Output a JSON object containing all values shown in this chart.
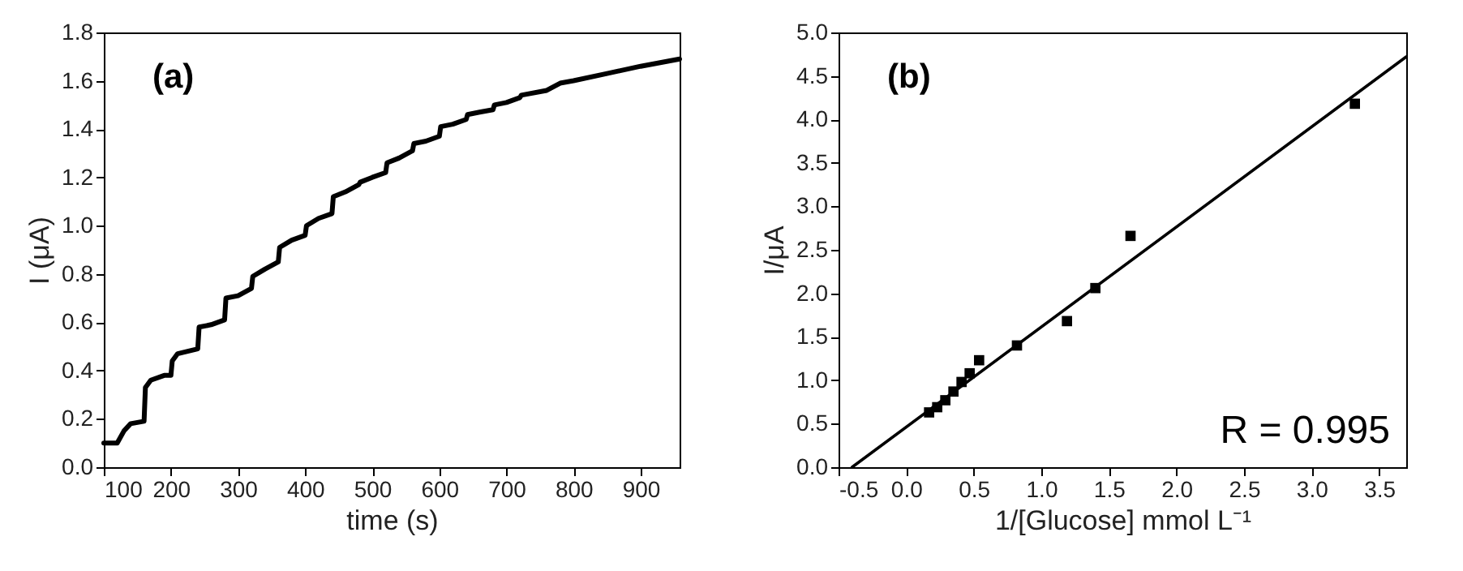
{
  "chart_data": [
    {
      "type": "line",
      "xlabel": "time (s)",
      "ylabel": "I (μA)",
      "xlim": [
        100,
        958
      ],
      "ylim": [
        0,
        1.8
      ],
      "xticks": [
        100,
        200,
        300,
        400,
        500,
        600,
        700,
        800,
        900
      ],
      "yticks": [
        {
          "value": 0,
          "label": "0.0"
        },
        0.2,
        0.4,
        0.6,
        0.8,
        {
          "value": 1,
          "label": "1.0"
        },
        1.2,
        1.4,
        1.6,
        1.8
      ],
      "annotations": [
        "(a)"
      ],
      "line_style": "solid",
      "series": [
        {
          "color": "#000000",
          "x": [
            100,
            120,
            130,
            140,
            160,
            162,
            170,
            190,
            200,
            202,
            210,
            240,
            242,
            260,
            280,
            282,
            300,
            320,
            322,
            340,
            360,
            362,
            380,
            400,
            402,
            420,
            440,
            442,
            460,
            480,
            482,
            500,
            520,
            522,
            540,
            560,
            562,
            580,
            600,
            602,
            620,
            640,
            642,
            660,
            680,
            682,
            700,
            720,
            722,
            760,
            780,
            800,
            850,
            900,
            958
          ],
          "values": [
            0.1,
            0.1,
            0.15,
            0.18,
            0.19,
            0.33,
            0.36,
            0.38,
            0.38,
            0.44,
            0.47,
            0.49,
            0.58,
            0.59,
            0.61,
            0.7,
            0.71,
            0.74,
            0.79,
            0.82,
            0.85,
            0.91,
            0.94,
            0.96,
            1.0,
            1.03,
            1.05,
            1.12,
            1.14,
            1.17,
            1.18,
            1.2,
            1.22,
            1.26,
            1.28,
            1.31,
            1.34,
            1.35,
            1.37,
            1.41,
            1.42,
            1.44,
            1.46,
            1.47,
            1.48,
            1.5,
            1.51,
            1.53,
            1.54,
            1.56,
            1.59,
            1.6,
            1.63,
            1.66,
            1.69
          ]
        }
      ]
    },
    {
      "type": "scatter",
      "xlabel": "1/[Glucose] mmol L⁻¹",
      "ylabel": "I/μA",
      "xlim": [
        -0.5,
        3.7
      ],
      "ylim": [
        0,
        5
      ],
      "xticks": [
        -0.5,
        {
          "value": 0,
          "label": "0.0"
        },
        0.5,
        {
          "value": 1,
          "label": "1.0"
        },
        1.5,
        {
          "value": 2,
          "label": "2.0"
        },
        2.5,
        {
          "value": 3,
          "label": "3.0"
        },
        3.5
      ],
      "yticks": [
        {
          "value": 0,
          "label": "0.0"
        },
        0.5,
        {
          "value": 1,
          "label": "1.0"
        },
        1.5,
        {
          "value": 2,
          "label": "2.0"
        },
        2.5,
        {
          "value": 3,
          "label": "3.0"
        },
        3.5,
        {
          "value": 4,
          "label": "4.0"
        },
        4.5,
        {
          "value": 5,
          "label": "5.0"
        }
      ],
      "annotations": [
        "(b)",
        "R = 0.995"
      ],
      "series": [
        {
          "type": "scatter",
          "marker": "square",
          "color": "#000000",
          "x": [
            0.17,
            0.23,
            0.29,
            0.35,
            0.41,
            0.47,
            0.54,
            0.82,
            1.19,
            1.4,
            1.66,
            3.32
          ],
          "values": [
            0.63,
            0.69,
            0.77,
            0.87,
            0.98,
            1.08,
            1.23,
            1.4,
            1.68,
            2.06,
            2.66,
            4.18
          ]
        },
        {
          "type": "line",
          "color": "#000000",
          "line_style": "solid",
          "x": [
            -0.4,
            3.7
          ],
          "values": [
            0,
            4.72
          ]
        }
      ]
    }
  ]
}
